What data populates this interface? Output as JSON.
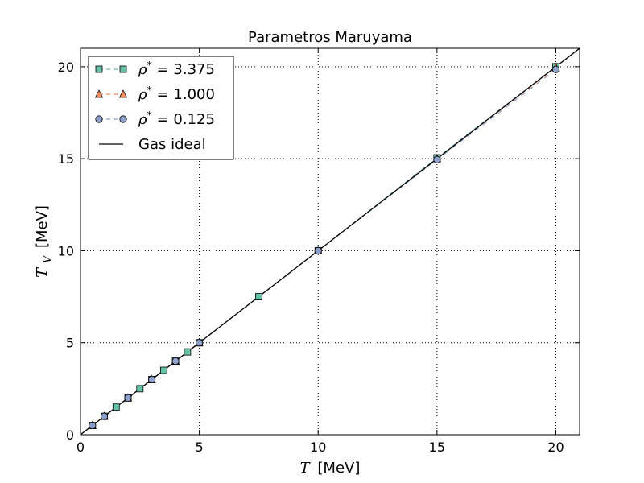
{
  "chart_data": {
    "type": "line",
    "title": "Parametros Maruyama",
    "xlabel": {
      "symbol": "T",
      "unit": "[MeV]"
    },
    "ylabel": {
      "symbol": "T",
      "subscript": "V",
      "unit": "[MeV]"
    },
    "xlim": [
      0,
      21
    ],
    "ylim": [
      0,
      21
    ],
    "xticks": [
      0,
      5,
      10,
      15,
      20
    ],
    "yticks": [
      0,
      5,
      10,
      15,
      20
    ],
    "grid": true,
    "legend_position": "top-left",
    "series": [
      {
        "name": {
          "symbol": "ρ",
          "superscript": "*",
          "value": "= 3.375"
        },
        "marker": "square",
        "color": "#66c2a5",
        "line_style": "dashed",
        "x": [
          0.5,
          1.0,
          1.5,
          2.0,
          2.5,
          3.0,
          3.5,
          4.0,
          4.5,
          5.0,
          7.5,
          10.0,
          15.0,
          20.0
        ],
        "y": [
          0.5,
          1.0,
          1.5,
          2.0,
          2.5,
          3.0,
          3.5,
          4.0,
          4.5,
          5.0,
          7.5,
          10.0,
          15.05,
          20.0
        ]
      },
      {
        "name": {
          "symbol": "ρ",
          "superscript": "*",
          "value": "= 1.000"
        },
        "marker": "triangle",
        "color": "#fc8d62",
        "line_style": "dashed",
        "x": [
          0.5,
          1.0,
          2.0,
          3.0,
          4.0,
          5.0,
          10.0,
          15.0,
          20.0
        ],
        "y": [
          0.5,
          1.0,
          2.0,
          3.0,
          4.0,
          5.0,
          10.0,
          15.0,
          19.95
        ]
      },
      {
        "name": {
          "symbol": "ρ",
          "superscript": "*",
          "value": "= 0.125"
        },
        "marker": "circle",
        "color": "#8da0cb",
        "line_style": "dashed",
        "x": [
          0.5,
          1.0,
          2.0,
          3.0,
          4.0,
          5.0,
          10.0,
          15.0,
          20.0
        ],
        "y": [
          0.5,
          1.0,
          2.0,
          3.0,
          4.0,
          5.0,
          10.0,
          14.95,
          19.85
        ]
      },
      {
        "name": {
          "text": "Gas ideal"
        },
        "marker": "none",
        "color": "#000000",
        "line_style": "solid",
        "x": [
          0,
          21
        ],
        "y": [
          0,
          21
        ]
      }
    ]
  }
}
